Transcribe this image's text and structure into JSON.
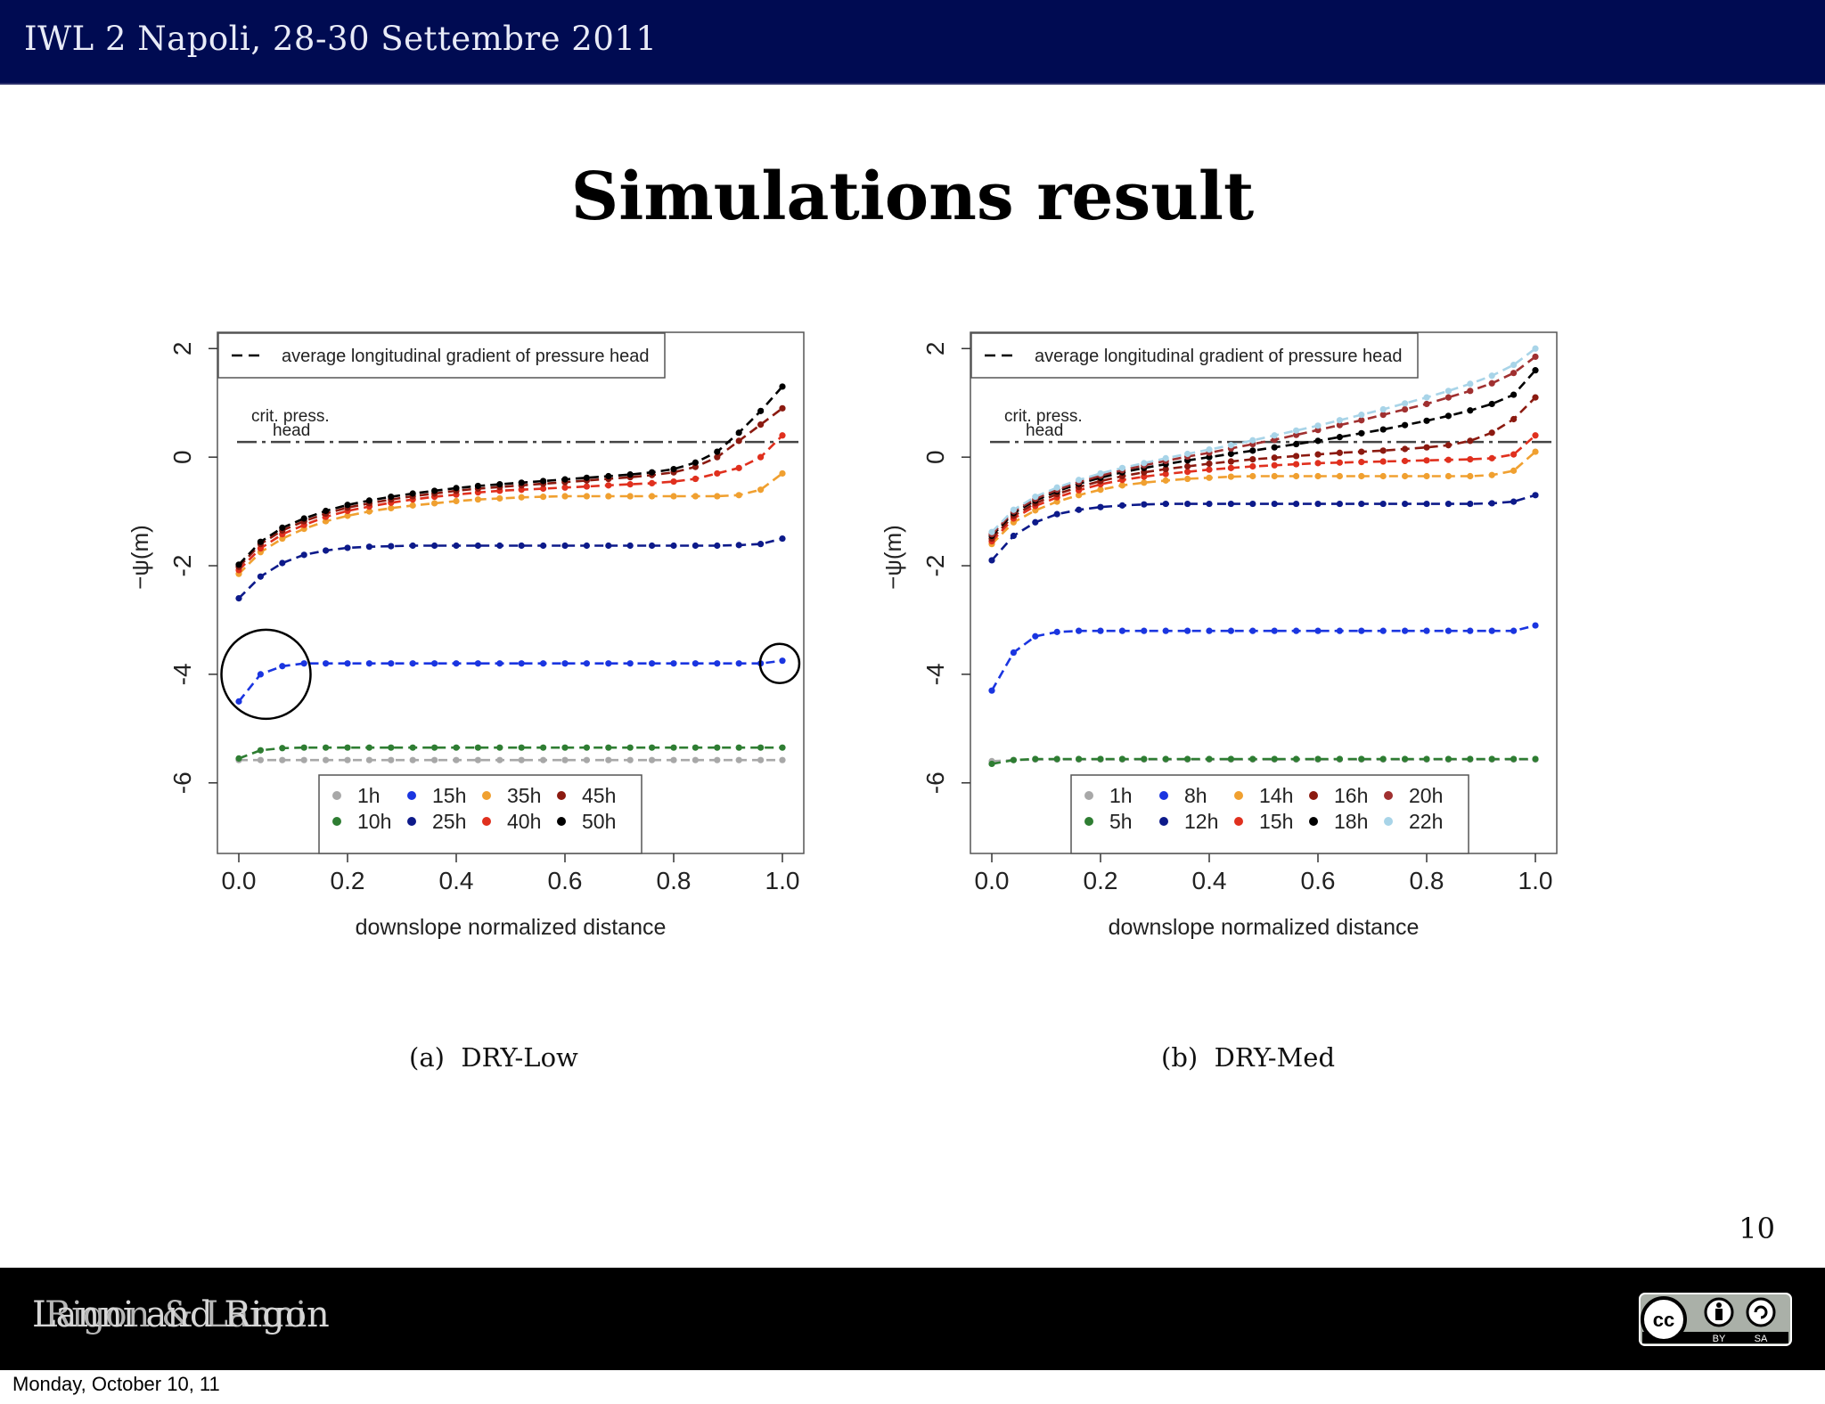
{
  "header": {
    "text": "IWL 2 Napoli, 28-30 Settembre 2011"
  },
  "slide": {
    "title": "Simulations result",
    "page_number": "10"
  },
  "footer": {
    "text": "Lanni and Rigon",
    "overlap_text": "Rigon & Lanni",
    "date": "Monday, October 10, 11",
    "license_icon": "cc-by-sa-icon"
  },
  "colors": {
    "header_bg": "#000b52",
    "footer_bg": "#000000",
    "1h": "#a8a8a8",
    "5h": "#2e7d32",
    "10h": "#2e7d32",
    "8h": "#0d1a8a",
    "15h_a": "#1a35e0",
    "25h": "#0d1a8a",
    "35h": "#f0a030",
    "14h": "#f0a030",
    "40h": "#e0301e",
    "15h_b": "#e0301e",
    "45h": "#8b1a10",
    "16h": "#8b1a10",
    "50h": "#000000",
    "18h": "#000000",
    "20h": "#a03030",
    "22h": "#a8d4e8"
  },
  "chart_data": [
    {
      "type": "line",
      "caption_label": "(a)",
      "caption": "DRY-Low",
      "xlabel": "downslope normalized distance",
      "ylabel": "−ψ(m)",
      "xlim": [
        0,
        1
      ],
      "ylim": [
        -7.3,
        2.3
      ],
      "xticks": [
        "0.0",
        "0.2",
        "0.4",
        "0.6",
        "0.8",
        "1.0"
      ],
      "yticks": [
        "-6",
        "-4",
        "-2",
        "0",
        "2"
      ],
      "legend_top": "average longitudinal gradient of pressure head",
      "threshold": {
        "label_line1": "crit. press.",
        "label_line2": "head",
        "y": 0.28
      },
      "annotations": [
        "circle around left end of 15h curve",
        "circle around right end of 15h curve"
      ],
      "legend_placement": "bottom-center",
      "x": [
        0.0,
        0.04,
        0.08,
        0.12,
        0.16,
        0.2,
        0.24,
        0.28,
        0.32,
        0.36,
        0.4,
        0.44,
        0.48,
        0.52,
        0.56,
        0.6,
        0.64,
        0.68,
        0.72,
        0.76,
        0.8,
        0.84,
        0.88,
        0.92,
        0.96,
        1.0
      ],
      "series": [
        {
          "name": "1h",
          "color": "#a8a8a8",
          "values": [
            -5.58,
            -5.58,
            -5.58,
            -5.58,
            -5.58,
            -5.58,
            -5.58,
            -5.58,
            -5.58,
            -5.58,
            -5.58,
            -5.58,
            -5.58,
            -5.58,
            -5.58,
            -5.58,
            -5.58,
            -5.58,
            -5.58,
            -5.58,
            -5.58,
            -5.58,
            -5.58,
            -5.58,
            -5.58,
            -5.58
          ]
        },
        {
          "name": "10h",
          "color": "#2e7d32",
          "values": [
            -5.55,
            -5.4,
            -5.36,
            -5.35,
            -5.35,
            -5.35,
            -5.35,
            -5.35,
            -5.35,
            -5.35,
            -5.35,
            -5.35,
            -5.35,
            -5.35,
            -5.35,
            -5.35,
            -5.35,
            -5.35,
            -5.35,
            -5.35,
            -5.35,
            -5.35,
            -5.35,
            -5.35,
            -5.35,
            -5.35
          ]
        },
        {
          "name": "15h",
          "color": "#1a35e0",
          "values": [
            -4.5,
            -4.0,
            -3.85,
            -3.8,
            -3.8,
            -3.8,
            -3.8,
            -3.8,
            -3.8,
            -3.8,
            -3.8,
            -3.8,
            -3.8,
            -3.8,
            -3.8,
            -3.8,
            -3.8,
            -3.8,
            -3.8,
            -3.8,
            -3.8,
            -3.8,
            -3.8,
            -3.8,
            -3.8,
            -3.75
          ]
        },
        {
          "name": "25h",
          "color": "#0d1a8a",
          "values": [
            -2.6,
            -2.2,
            -1.95,
            -1.8,
            -1.72,
            -1.67,
            -1.65,
            -1.64,
            -1.63,
            -1.63,
            -1.63,
            -1.63,
            -1.63,
            -1.63,
            -1.63,
            -1.63,
            -1.63,
            -1.63,
            -1.63,
            -1.63,
            -1.63,
            -1.63,
            -1.63,
            -1.62,
            -1.6,
            -1.5
          ]
        },
        {
          "name": "35h",
          "color": "#f0a030",
          "values": [
            -2.15,
            -1.75,
            -1.5,
            -1.32,
            -1.18,
            -1.08,
            -1.0,
            -0.94,
            -0.89,
            -0.85,
            -0.81,
            -0.78,
            -0.76,
            -0.74,
            -0.73,
            -0.72,
            -0.72,
            -0.72,
            -0.72,
            -0.72,
            -0.72,
            -0.72,
            -0.72,
            -0.7,
            -0.6,
            -0.3
          ]
        },
        {
          "name": "40h",
          "color": "#e0301e",
          "values": [
            -2.08,
            -1.68,
            -1.42,
            -1.25,
            -1.1,
            -0.99,
            -0.91,
            -0.84,
            -0.78,
            -0.73,
            -0.69,
            -0.65,
            -0.62,
            -0.6,
            -0.58,
            -0.56,
            -0.54,
            -0.52,
            -0.5,
            -0.48,
            -0.45,
            -0.4,
            -0.3,
            -0.2,
            0.0,
            0.4
          ]
        },
        {
          "name": "45h",
          "color": "#8b1a10",
          "values": [
            -2.02,
            -1.6,
            -1.35,
            -1.18,
            -1.04,
            -0.93,
            -0.85,
            -0.78,
            -0.72,
            -0.67,
            -0.62,
            -0.58,
            -0.55,
            -0.52,
            -0.49,
            -0.46,
            -0.43,
            -0.4,
            -0.37,
            -0.33,
            -0.28,
            -0.18,
            0.0,
            0.3,
            0.6,
            0.9
          ]
        },
        {
          "name": "50h",
          "color": "#000000",
          "values": [
            -1.98,
            -1.56,
            -1.3,
            -1.13,
            -0.99,
            -0.88,
            -0.8,
            -0.73,
            -0.67,
            -0.62,
            -0.57,
            -0.53,
            -0.5,
            -0.47,
            -0.44,
            -0.41,
            -0.38,
            -0.35,
            -0.32,
            -0.28,
            -0.22,
            -0.1,
            0.1,
            0.45,
            0.85,
            1.3
          ]
        }
      ],
      "legend_entries": [
        {
          "label": "1h",
          "color": "#a8a8a8"
        },
        {
          "label": "15h",
          "color": "#1a35e0"
        },
        {
          "label": "35h",
          "color": "#f0a030"
        },
        {
          "label": "45h",
          "color": "#8b1a10"
        },
        {
          "label": "10h",
          "color": "#2e7d32"
        },
        {
          "label": "25h",
          "color": "#0d1a8a"
        },
        {
          "label": "40h",
          "color": "#e0301e"
        },
        {
          "label": "50h",
          "color": "#000000"
        }
      ]
    },
    {
      "type": "line",
      "caption_label": "(b)",
      "caption": "DRY-Med",
      "xlabel": "downslope normalized distance",
      "ylabel": "−ψ(m)",
      "xlim": [
        0,
        1
      ],
      "ylim": [
        -7.3,
        2.3
      ],
      "xticks": [
        "0.0",
        "0.2",
        "0.4",
        "0.6",
        "0.8",
        "1.0"
      ],
      "yticks": [
        "-6",
        "-4",
        "-2",
        "0",
        "2"
      ],
      "legend_top": "average longitudinal gradient of pressure head",
      "threshold": {
        "label_line1": "crit. press.",
        "label_line2": "head",
        "y": 0.28
      },
      "legend_placement": "bottom-center",
      "x": [
        0.0,
        0.04,
        0.08,
        0.12,
        0.16,
        0.2,
        0.24,
        0.28,
        0.32,
        0.36,
        0.4,
        0.44,
        0.48,
        0.52,
        0.56,
        0.6,
        0.64,
        0.68,
        0.72,
        0.76,
        0.8,
        0.84,
        0.88,
        0.92,
        0.96,
        1.0
      ],
      "series": [
        {
          "name": "1h",
          "color": "#a8a8a8",
          "values": [
            -5.6,
            -5.58,
            -5.57,
            -5.57,
            -5.57,
            -5.57,
            -5.57,
            -5.57,
            -5.57,
            -5.57,
            -5.57,
            -5.57,
            -5.57,
            -5.57,
            -5.57,
            -5.57,
            -5.57,
            -5.57,
            -5.57,
            -5.57,
            -5.57,
            -5.57,
            -5.57,
            -5.57,
            -5.57,
            -5.57
          ]
        },
        {
          "name": "5h",
          "color": "#2e7d32",
          "values": [
            -5.65,
            -5.58,
            -5.56,
            -5.56,
            -5.56,
            -5.56,
            -5.56,
            -5.56,
            -5.56,
            -5.56,
            -5.56,
            -5.56,
            -5.56,
            -5.56,
            -5.56,
            -5.56,
            -5.56,
            -5.56,
            -5.56,
            -5.56,
            -5.56,
            -5.56,
            -5.56,
            -5.56,
            -5.56,
            -5.56
          ]
        },
        {
          "name": "8h",
          "color": "#1a35e0",
          "values": [
            -4.3,
            -3.6,
            -3.3,
            -3.22,
            -3.2,
            -3.2,
            -3.2,
            -3.2,
            -3.2,
            -3.2,
            -3.2,
            -3.2,
            -3.2,
            -3.2,
            -3.2,
            -3.2,
            -3.2,
            -3.2,
            -3.2,
            -3.2,
            -3.2,
            -3.2,
            -3.2,
            -3.2,
            -3.2,
            -3.1
          ]
        },
        {
          "name": "12h",
          "color": "#0d1a8a",
          "values": [
            -1.9,
            -1.45,
            -1.2,
            -1.05,
            -0.97,
            -0.92,
            -0.89,
            -0.87,
            -0.86,
            -0.86,
            -0.86,
            -0.86,
            -0.86,
            -0.86,
            -0.86,
            -0.86,
            -0.86,
            -0.86,
            -0.86,
            -0.86,
            -0.86,
            -0.86,
            -0.86,
            -0.85,
            -0.82,
            -0.7
          ]
        },
        {
          "name": "14h",
          "color": "#f0a030",
          "values": [
            -1.6,
            -1.2,
            -0.98,
            -0.82,
            -0.7,
            -0.6,
            -0.52,
            -0.47,
            -0.43,
            -0.4,
            -0.38,
            -0.36,
            -0.35,
            -0.35,
            -0.35,
            -0.35,
            -0.35,
            -0.35,
            -0.35,
            -0.35,
            -0.35,
            -0.35,
            -0.35,
            -0.33,
            -0.25,
            0.1
          ]
        },
        {
          "name": "15h",
          "color": "#e0301e",
          "values": [
            -1.55,
            -1.13,
            -0.9,
            -0.74,
            -0.61,
            -0.5,
            -0.42,
            -0.36,
            -0.31,
            -0.27,
            -0.23,
            -0.2,
            -0.17,
            -0.15,
            -0.13,
            -0.11,
            -0.1,
            -0.09,
            -0.08,
            -0.07,
            -0.06,
            -0.05,
            -0.04,
            -0.02,
            0.05,
            0.4
          ]
        },
        {
          "name": "16h",
          "color": "#8b1a10",
          "values": [
            -1.5,
            -1.08,
            -0.85,
            -0.68,
            -0.55,
            -0.44,
            -0.35,
            -0.28,
            -0.22,
            -0.17,
            -0.12,
            -0.08,
            -0.04,
            -0.01,
            0.02,
            0.05,
            0.08,
            0.1,
            0.12,
            0.15,
            0.18,
            0.22,
            0.3,
            0.45,
            0.7,
            1.1
          ]
        },
        {
          "name": "18h",
          "color": "#000000",
          "values": [
            -1.45,
            -1.03,
            -0.8,
            -0.63,
            -0.49,
            -0.38,
            -0.28,
            -0.2,
            -0.13,
            -0.06,
            0.0,
            0.06,
            0.12,
            0.18,
            0.24,
            0.3,
            0.37,
            0.44,
            0.51,
            0.59,
            0.67,
            0.76,
            0.86,
            0.98,
            1.15,
            1.6
          ]
        },
        {
          "name": "20h",
          "color": "#a03030",
          "values": [
            -1.42,
            -1.0,
            -0.77,
            -0.6,
            -0.46,
            -0.34,
            -0.24,
            -0.15,
            -0.07,
            0.01,
            0.08,
            0.16,
            0.24,
            0.32,
            0.41,
            0.5,
            0.59,
            0.68,
            0.78,
            0.88,
            0.98,
            1.1,
            1.22,
            1.36,
            1.55,
            1.85
          ]
        },
        {
          "name": "22h",
          "color": "#a8d4e8",
          "values": [
            -1.38,
            -0.97,
            -0.73,
            -0.56,
            -0.42,
            -0.3,
            -0.2,
            -0.11,
            -0.02,
            0.06,
            0.14,
            0.22,
            0.31,
            0.4,
            0.49,
            0.58,
            0.68,
            0.78,
            0.88,
            0.99,
            1.1,
            1.22,
            1.35,
            1.5,
            1.7,
            2.0
          ]
        }
      ],
      "legend_entries": [
        {
          "label": "1h",
          "color": "#a8a8a8"
        },
        {
          "label": "8h",
          "color": "#1a35e0"
        },
        {
          "label": "14h",
          "color": "#f0a030"
        },
        {
          "label": "16h",
          "color": "#8b1a10"
        },
        {
          "label": "20h",
          "color": "#a03030"
        },
        {
          "label": "5h",
          "color": "#2e7d32"
        },
        {
          "label": "12h",
          "color": "#0d1a8a"
        },
        {
          "label": "15h",
          "color": "#e0301e"
        },
        {
          "label": "18h",
          "color": "#000000"
        },
        {
          "label": "22h",
          "color": "#a8d4e8"
        }
      ]
    }
  ]
}
